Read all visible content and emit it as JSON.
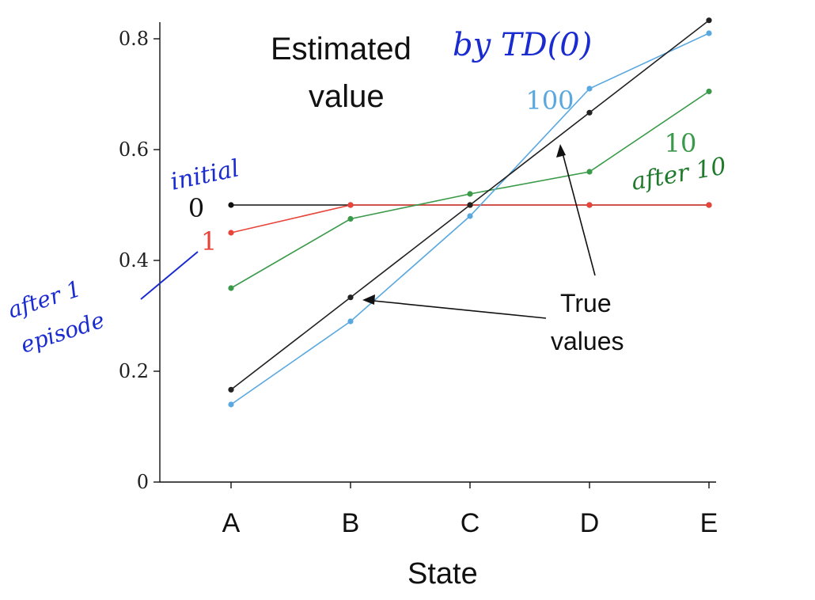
{
  "chart_data": {
    "type": "line",
    "title": [
      "Estimated",
      "value"
    ],
    "xlabel": "State",
    "ylabel": "",
    "categories": [
      "A",
      "B",
      "C",
      "D",
      "E"
    ],
    "ylim": [
      0,
      0.83
    ],
    "yticks": [
      "0",
      "0.2",
      "0.4",
      "0.6",
      "0.8"
    ],
    "ytick_values": [
      0,
      0.2,
      0.4,
      0.6,
      0.8
    ],
    "grid": false,
    "series": [
      {
        "name": "0",
        "color": "#111111",
        "values": [
          0.5,
          0.5,
          0.5,
          0.5,
          0.5
        ]
      },
      {
        "name": "1",
        "color": "#e8443a",
        "values": [
          0.45,
          0.5,
          0.5,
          0.5,
          0.5
        ]
      },
      {
        "name": "10",
        "color": "#3a9a4a",
        "values": [
          0.35,
          0.475,
          0.52,
          0.56,
          0.705
        ]
      },
      {
        "name": "100",
        "color": "#5aa8e0",
        "values": [
          0.14,
          0.29,
          0.48,
          0.71,
          0.81
        ]
      },
      {
        "name": "",
        "color": "#222222",
        "values": [
          0.1667,
          0.3333,
          0.5,
          0.6667,
          0.8333
        ]
      }
    ],
    "annotations": {
      "true_values": [
        "True",
        "values"
      ]
    }
  },
  "handwritten": {
    "title_note": "by TD(0)",
    "initial": "initial",
    "after1": [
      "after 1",
      "episode"
    ],
    "after10": "after 10",
    "ink_blue": "#1a2bd0",
    "ink_green": "#1f7a2c"
  }
}
